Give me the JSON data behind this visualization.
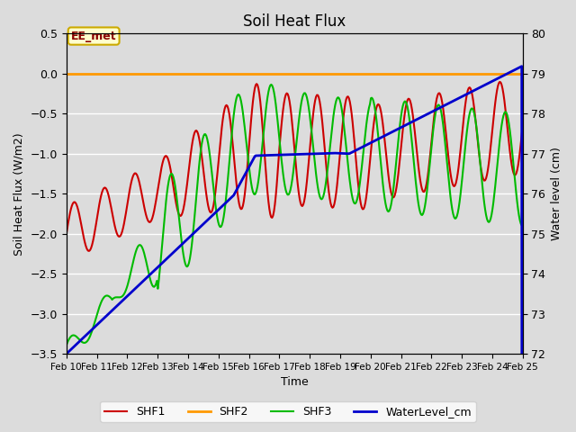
{
  "title": "Soil Heat Flux",
  "xlabel": "Time",
  "ylabel_left": "Soil Heat Flux (W/m2)",
  "ylabel_right": "Water level (cm)",
  "annotation": "EE_met",
  "ylim_left": [
    -3.5,
    0.5
  ],
  "ylim_right": [
    72.0,
    80.0
  ],
  "yticks_left": [
    -3.5,
    -3.0,
    -2.5,
    -2.0,
    -1.5,
    -1.0,
    -0.5,
    0.0,
    0.5
  ],
  "yticks_right": [
    72.0,
    73.0,
    74.0,
    75.0,
    76.0,
    77.0,
    78.0,
    79.0,
    80.0
  ],
  "xtick_labels": [
    "Feb 10",
    "Feb 11",
    "Feb 12",
    "Feb 13",
    "Feb 14",
    "Feb 15",
    "Feb 16",
    "Feb 17",
    "Feb 18",
    "Feb 19",
    "Feb 20",
    "Feb 21",
    "Feb 22",
    "Feb 23",
    "Feb 24",
    "Feb 25"
  ],
  "shf1_color": "#cc0000",
  "shf2_color": "#ff9900",
  "shf3_color": "#00bb00",
  "water_color": "#0000cc",
  "shf1_lw": 1.5,
  "shf2_lw": 2.0,
  "shf3_lw": 1.5,
  "water_lw": 2.0,
  "bg_color": "#dcdcdc"
}
